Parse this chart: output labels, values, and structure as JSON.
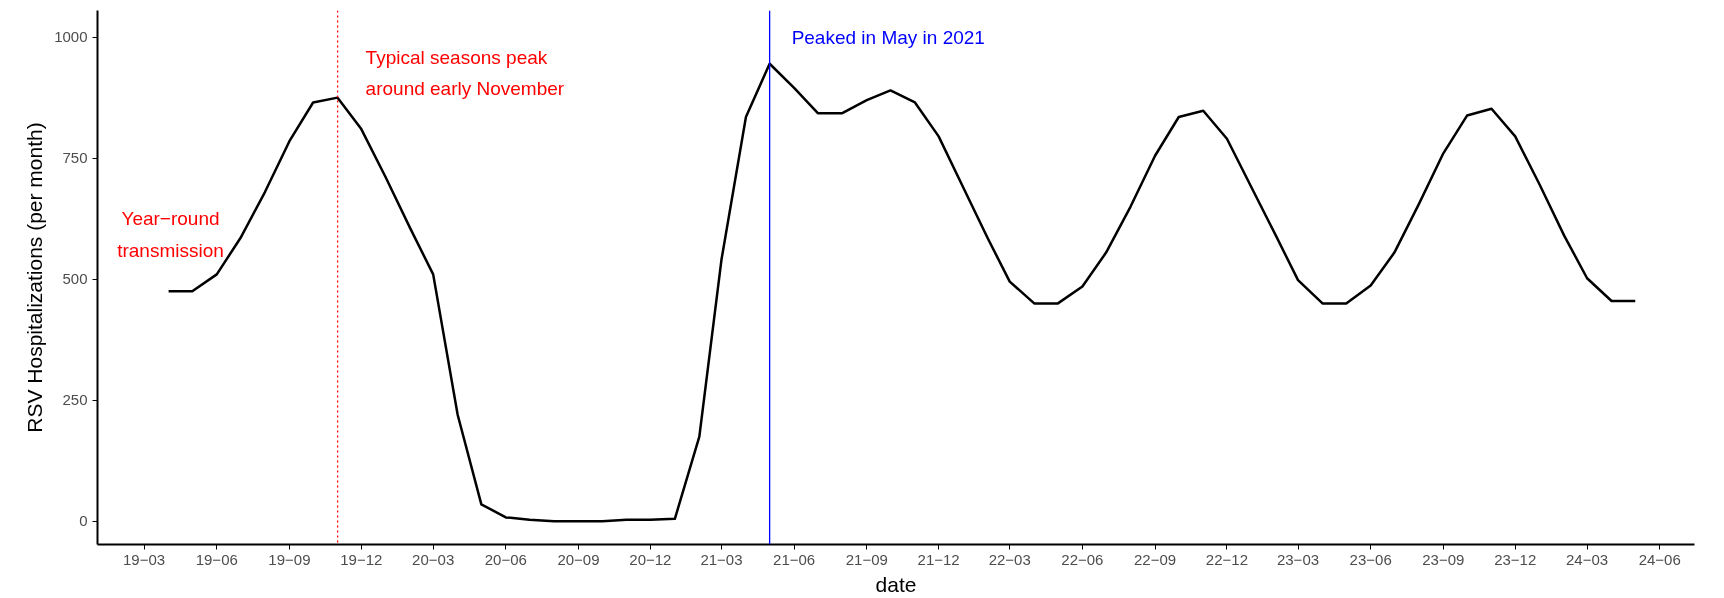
{
  "chart_data": {
    "type": "line",
    "xlabel": "date",
    "ylabel": "RSV Hospitalizations (per month)",
    "x": [
      "2019-04",
      "2019-05",
      "2019-06",
      "2019-07",
      "2019-08",
      "2019-09",
      "2019-10",
      "2019-11",
      "2019-12",
      "2020-01",
      "2020-02",
      "2020-03",
      "2020-04",
      "2020-05",
      "2020-06",
      "2020-07",
      "2020-08",
      "2020-09",
      "2020-10",
      "2020-11",
      "2020-12",
      "2021-01",
      "2021-02",
      "2021-03",
      "2021-04",
      "2021-05",
      "2021-06",
      "2021-07",
      "2021-08",
      "2021-09",
      "2021-10",
      "2021-11",
      "2021-12",
      "2022-01",
      "2022-02",
      "2022-03",
      "2022-04",
      "2022-05",
      "2022-06",
      "2022-07",
      "2022-08",
      "2022-09",
      "2022-10",
      "2022-11",
      "2022-12",
      "2023-01",
      "2023-02",
      "2023-03",
      "2023-04",
      "2023-05",
      "2023-06",
      "2023-07",
      "2023-08",
      "2023-09",
      "2023-10",
      "2023-11",
      "2023-12",
      "2024-01",
      "2024-02",
      "2024-03",
      "2024-04",
      "2024-05"
    ],
    "series": [
      {
        "color": "#000000",
        "values": [
          475,
          475,
          510,
          585,
          680,
          785,
          865,
          875,
          810,
          710,
          605,
          510,
          220,
          35,
          8,
          3,
          0,
          0,
          0,
          3,
          3,
          5,
          175,
          540,
          835,
          945,
          895,
          843,
          843,
          870,
          890,
          865,
          795,
          690,
          585,
          495,
          450,
          450,
          485,
          555,
          650,
          755,
          835,
          848,
          790,
          690,
          590,
          498,
          450,
          450,
          487,
          555,
          655,
          760,
          838,
          852,
          795,
          695,
          590,
          502,
          455,
          455
        ]
      }
    ],
    "xlim": [
      "2019-01-01",
      "2024-07-15"
    ],
    "xticks": [
      {
        "value": "2019-03",
        "label": "19−03"
      },
      {
        "value": "2019-06",
        "label": "19−06"
      },
      {
        "value": "2019-09",
        "label": "19−09"
      },
      {
        "value": "2019-12",
        "label": "19−12"
      },
      {
        "value": "2020-03",
        "label": "20−03"
      },
      {
        "value": "2020-06",
        "label": "20−06"
      },
      {
        "value": "2020-09",
        "label": "20−09"
      },
      {
        "value": "2020-12",
        "label": "20−12"
      },
      {
        "value": "2021-03",
        "label": "21−03"
      },
      {
        "value": "2021-06",
        "label": "21−06"
      },
      {
        "value": "2021-09",
        "label": "21−09"
      },
      {
        "value": "2021-12",
        "label": "21−12"
      },
      {
        "value": "2022-03",
        "label": "22−03"
      },
      {
        "value": "2022-06",
        "label": "22−06"
      },
      {
        "value": "2022-09",
        "label": "22−09"
      },
      {
        "value": "2022-12",
        "label": "22−12"
      },
      {
        "value": "2023-03",
        "label": "23−03"
      },
      {
        "value": "2023-06",
        "label": "23−06"
      },
      {
        "value": "2023-09",
        "label": "23−09"
      },
      {
        "value": "2023-12",
        "label": "23−12"
      },
      {
        "value": "2024-03",
        "label": "24−03"
      },
      {
        "value": "2024-06",
        "label": "24−06"
      }
    ],
    "ylim": [
      -48,
      1055
    ],
    "yticks": [
      0,
      250,
      500,
      750,
      1000
    ],
    "ref_lines": [
      {
        "axis": "x",
        "value": "2019-11",
        "label": "Typical seasons peak\naround early November",
        "color": "#ff0000",
        "line_style": "dotted"
      },
      {
        "axis": "x",
        "value": "2021-05",
        "label": "Peaked in May in 2021",
        "color": "#0000ff",
        "line_style": "solid"
      }
    ],
    "annotations": [
      "Year−round\ntransmission"
    ],
    "grid": false,
    "marker": "none",
    "line_style": "solid"
  }
}
